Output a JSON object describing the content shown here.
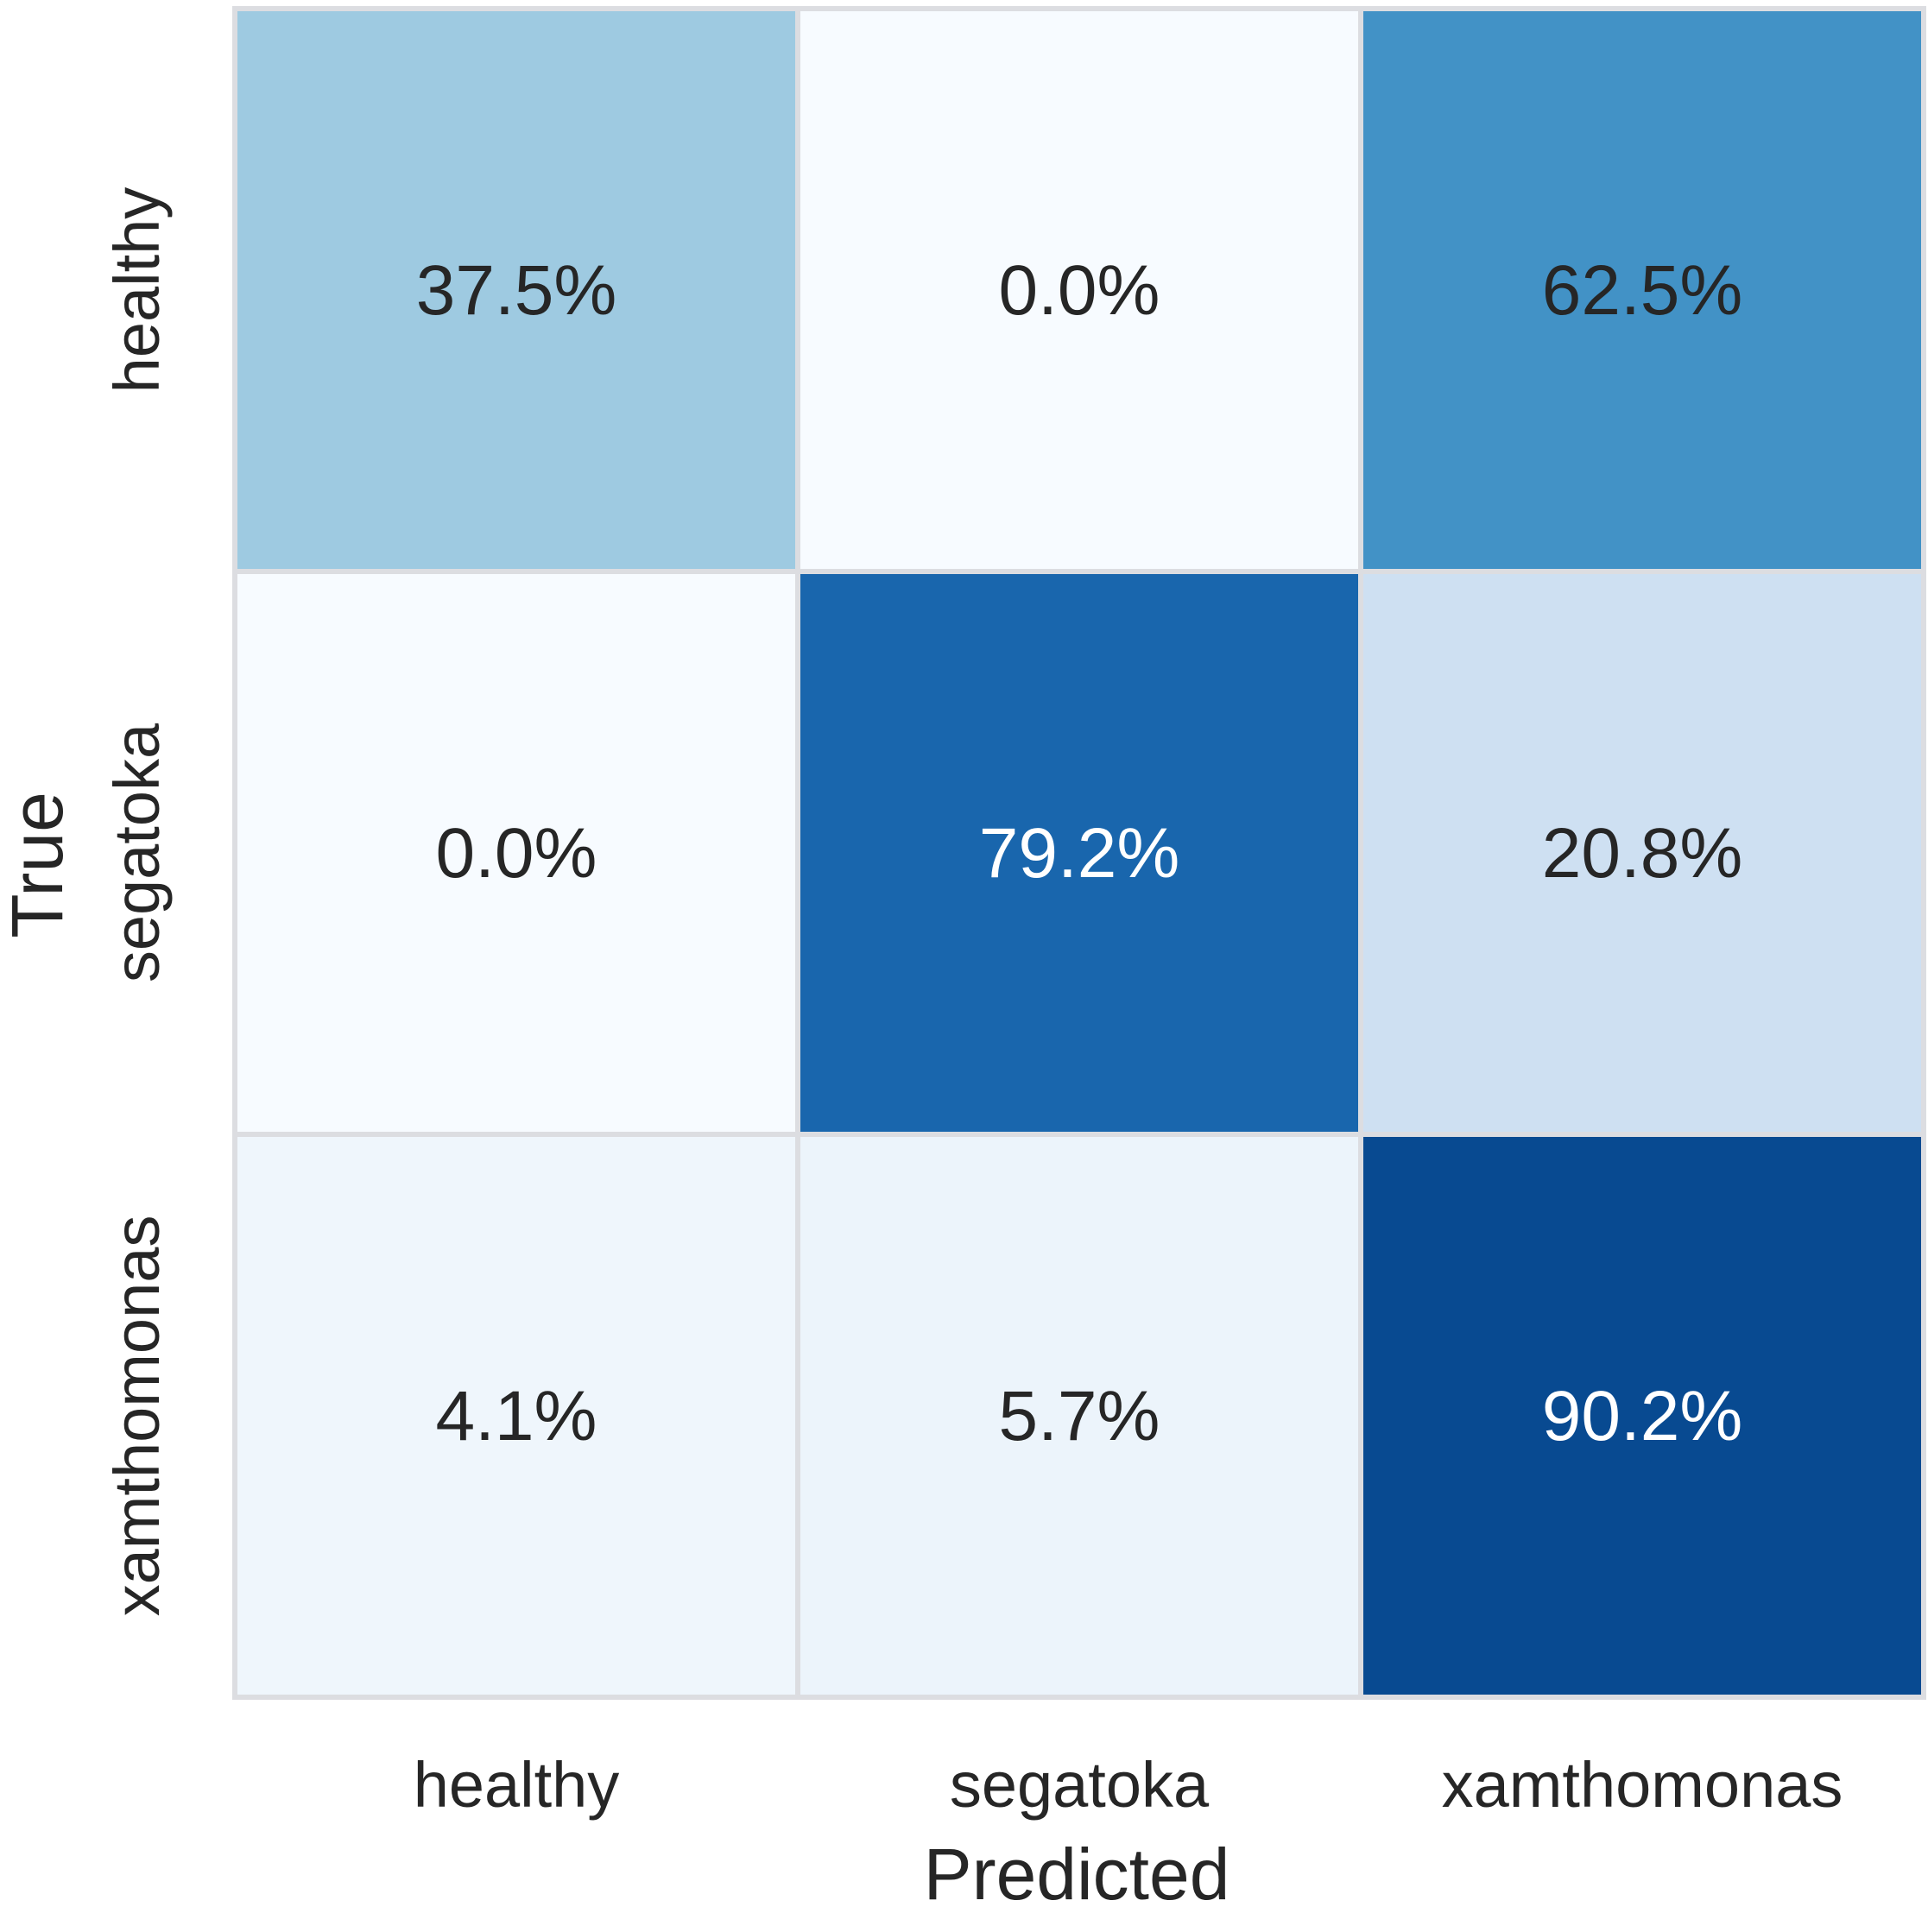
{
  "chart_data": {
    "type": "heatmap",
    "title": "",
    "xlabel": "Predicted",
    "ylabel": "True",
    "x_categories": [
      "healthy",
      "segatoka",
      "xamthomonas"
    ],
    "y_categories": [
      "healthy",
      "segatoka",
      "xamthomonas"
    ],
    "values": [
      [
        37.5,
        0.0,
        62.5
      ],
      [
        0.0,
        79.2,
        20.8
      ],
      [
        4.1,
        5.7,
        90.2
      ]
    ],
    "cell_labels": [
      [
        "37.5%",
        "0.0%",
        "62.5%"
      ],
      [
        "0.0%",
        "79.2%",
        "20.8%"
      ],
      [
        "4.1%",
        "5.7%",
        "90.2%"
      ]
    ],
    "colormap": "Blues",
    "value_range": [
      0,
      100
    ],
    "colorbar": false,
    "grid_line_color": "#dcdde1",
    "dark_text_color": "#262626",
    "light_text_color": "#ffffff"
  }
}
